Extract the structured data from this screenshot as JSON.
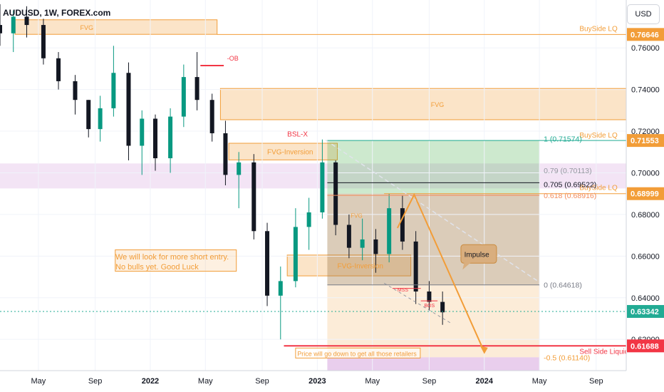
{
  "symbol": "AUDUSD, 1W, FOREX.com",
  "currency_button": "USD",
  "chart_data": {
    "type": "candlestick",
    "title": "AUDUSD, 1W, FOREX.com",
    "ylim": [
      0.605,
      0.783
    ],
    "y_ticks": [
      "0.76000",
      "0.74000",
      "0.72000",
      "0.70000",
      "0.68000",
      "0.66000",
      "0.64000",
      "0.62000"
    ],
    "y_tick_values": [
      0.76,
      0.74,
      0.72,
      0.7,
      0.68,
      0.66,
      0.64,
      0.62
    ],
    "x_ticks": [
      "May",
      "Sep",
      "2022",
      "May",
      "Sep",
      "2023",
      "May",
      "Sep",
      "2024",
      "May",
      "Sep"
    ],
    "x_tick_times": [
      2021.33,
      2021.67,
      2022.0,
      2022.33,
      2022.67,
      2023.0,
      2023.33,
      2023.67,
      2024.0,
      2024.33,
      2024.67
    ],
    "xlim": [
      2021.1,
      2024.85
    ],
    "price_labels": [
      {
        "text": "0.76646",
        "value": 0.76646,
        "color": "#f29d38"
      },
      {
        "text": "0.71553",
        "value": 0.71553,
        "color": "#f29d38"
      },
      {
        "text": "0.68999",
        "value": 0.68999,
        "color": "#f29d38"
      },
      {
        "text": "0.63342",
        "value": 0.63342,
        "color": "#22ab94"
      },
      {
        "text": "0.61688",
        "value": 0.61688,
        "color": "#f23645"
      }
    ],
    "fib_levels": [
      {
        "text": "1 (0.71574)",
        "value": 0.71574,
        "color": "#22ab94"
      },
      {
        "text": "0.79 (0.70113)",
        "value": 0.70113,
        "color": "#9598a1"
      },
      {
        "text": "0.705 (0.69522)",
        "value": 0.69522,
        "color": "#131722"
      },
      {
        "text": "0.618 (0.68916)",
        "value": 0.68916,
        "color": "#f28b5c"
      },
      {
        "text": "0 (0.64618)",
        "value": 0.64618,
        "color": "#787b86"
      },
      {
        "text": "-0.5 (0.61140)",
        "value": 0.6114,
        "color": "#f29d38"
      }
    ],
    "annotations": {
      "buyside_1": "BuySide LQ",
      "buyside_2": "BuySide LQ",
      "buyside_3": "BuySide LQ",
      "sellside": "Sell Side Liquidity",
      "fvg_1": "FVG",
      "fvg_2": "FVG",
      "fvg_inv_1": "FVG-Inversion",
      "fvg_inv_2": "FVG-Inversion",
      "fvg_small": "FVG",
      "ob": "-OB",
      "bslx": "BSL-X",
      "mss": "MSS",
      "bos": "BOS",
      "impulse": "Impulse",
      "retailers": "Price will go down to get all those retailers"
    },
    "note_line1": "We will look for more short entry.",
    "note_line2": "No bulls yet. Good Luck",
    "candles": [
      {
        "t": 2021.1,
        "o": 0.771,
        "h": 0.781,
        "l": 0.761,
        "c": 0.767
      },
      {
        "t": 2021.18,
        "o": 0.767,
        "h": 0.778,
        "l": 0.758,
        "c": 0.775
      },
      {
        "t": 2021.26,
        "o": 0.775,
        "h": 0.78,
        "l": 0.765,
        "c": 0.771
      },
      {
        "t": 2021.36,
        "o": 0.771,
        "h": 0.774,
        "l": 0.752,
        "c": 0.755
      },
      {
        "t": 2021.45,
        "o": 0.755,
        "h": 0.758,
        "l": 0.74,
        "c": 0.744
      },
      {
        "t": 2021.55,
        "o": 0.744,
        "h": 0.747,
        "l": 0.728,
        "c": 0.735
      },
      {
        "t": 2021.63,
        "o": 0.735,
        "h": 0.735,
        "l": 0.717,
        "c": 0.721
      },
      {
        "t": 2021.7,
        "o": 0.721,
        "h": 0.737,
        "l": 0.715,
        "c": 0.731
      },
      {
        "t": 2021.78,
        "o": 0.731,
        "h": 0.761,
        "l": 0.727,
        "c": 0.748
      },
      {
        "t": 2021.87,
        "o": 0.748,
        "h": 0.753,
        "l": 0.706,
        "c": 0.713
      },
      {
        "t": 2021.95,
        "o": 0.713,
        "h": 0.73,
        "l": 0.699,
        "c": 0.726
      },
      {
        "t": 2022.03,
        "o": 0.726,
        "h": 0.728,
        "l": 0.701,
        "c": 0.707
      },
      {
        "t": 2022.12,
        "o": 0.707,
        "h": 0.731,
        "l": 0.7,
        "c": 0.727
      },
      {
        "t": 2022.2,
        "o": 0.727,
        "h": 0.752,
        "l": 0.722,
        "c": 0.746
      },
      {
        "t": 2022.28,
        "o": 0.746,
        "h": 0.758,
        "l": 0.73,
        "c": 0.735
      },
      {
        "t": 2022.37,
        "o": 0.735,
        "h": 0.738,
        "l": 0.715,
        "c": 0.719
      },
      {
        "t": 2022.45,
        "o": 0.719,
        "h": 0.725,
        "l": 0.694,
        "c": 0.699
      },
      {
        "t": 2022.53,
        "o": 0.699,
        "h": 0.71,
        "l": 0.683,
        "c": 0.705
      },
      {
        "t": 2022.62,
        "o": 0.705,
        "h": 0.709,
        "l": 0.668,
        "c": 0.672
      },
      {
        "t": 2022.7,
        "o": 0.672,
        "h": 0.676,
        "l": 0.636,
        "c": 0.641
      },
      {
        "t": 2022.78,
        "o": 0.641,
        "h": 0.655,
        "l": 0.62,
        "c": 0.648
      },
      {
        "t": 2022.87,
        "o": 0.648,
        "h": 0.683,
        "l": 0.645,
        "c": 0.674
      },
      {
        "t": 2022.95,
        "o": 0.674,
        "h": 0.688,
        "l": 0.663,
        "c": 0.681
      },
      {
        "t": 2023.03,
        "o": 0.681,
        "h": 0.716,
        "l": 0.678,
        "c": 0.705
      },
      {
        "t": 2023.11,
        "o": 0.705,
        "h": 0.706,
        "l": 0.67,
        "c": 0.675
      },
      {
        "t": 2023.19,
        "o": 0.675,
        "h": 0.68,
        "l": 0.659,
        "c": 0.664
      },
      {
        "t": 2023.27,
        "o": 0.664,
        "h": 0.678,
        "l": 0.658,
        "c": 0.668
      },
      {
        "t": 2023.35,
        "o": 0.668,
        "h": 0.673,
        "l": 0.652,
        "c": 0.661
      },
      {
        "t": 2023.43,
        "o": 0.661,
        "h": 0.69,
        "l": 0.657,
        "c": 0.683
      },
      {
        "t": 2023.51,
        "o": 0.683,
        "h": 0.689,
        "l": 0.663,
        "c": 0.667
      },
      {
        "t": 2023.59,
        "o": 0.667,
        "h": 0.672,
        "l": 0.637,
        "c": 0.643
      },
      {
        "t": 2023.67,
        "o": 0.643,
        "h": 0.648,
        "l": 0.634,
        "c": 0.638
      },
      {
        "t": 2023.75,
        "o": 0.638,
        "h": 0.643,
        "l": 0.627,
        "c": 0.633
      }
    ]
  }
}
